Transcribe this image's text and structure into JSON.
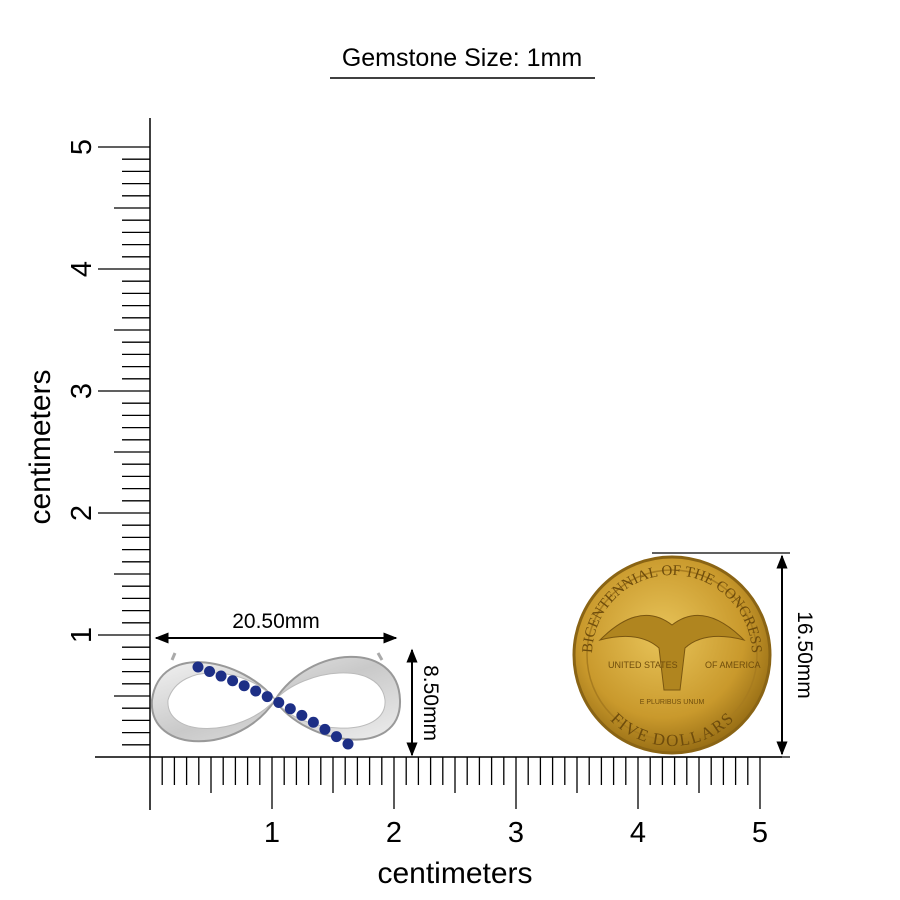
{
  "title": "Gemstone Size: 1mm",
  "ruler": {
    "x_label": "centimeters",
    "y_label": "centimeters",
    "x_ticks": [
      1,
      2,
      3,
      4,
      5
    ],
    "y_ticks": [
      1,
      2,
      3,
      4,
      5
    ]
  },
  "pendant": {
    "width_label": "20.50mm",
    "height_label": "8.50mm"
  },
  "coin": {
    "diameter_label": "16.50mm",
    "inscriptions": [
      "BICENTENNIAL OF THE CONGRESS",
      "UNITED STATES",
      "OF AMERICA",
      "E PLURIBUS UNUM",
      "FIVE DOLLARS"
    ]
  }
}
